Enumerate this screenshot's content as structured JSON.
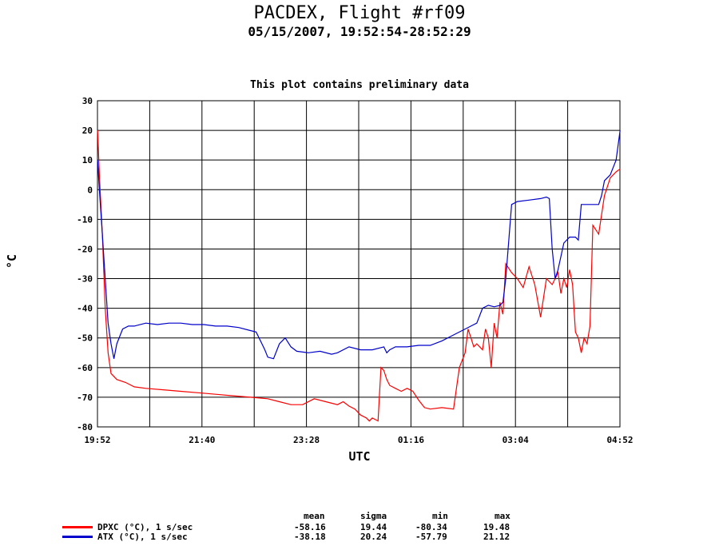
{
  "chart_data": {
    "type": "line",
    "title": "PACDEX, Flight #rf09",
    "subtitle": "05/15/2007, 19:52:54-28:52:29",
    "note": "This plot contains preliminary data",
    "xlabel": "UTC",
    "ylabel": "°C",
    "ylim": [
      -80,
      30
    ],
    "yticks": [
      30,
      20,
      10,
      0,
      -10,
      -20,
      -30,
      -40,
      -50,
      -60,
      -70,
      -80
    ],
    "xlim": [
      19.8667,
      28.8667
    ],
    "xticks": [
      {
        "value": 19.8667,
        "label": "19:52"
      },
      {
        "value": 21.6667,
        "label": "21:40"
      },
      {
        "value": 23.4667,
        "label": "23:28"
      },
      {
        "value": 25.2667,
        "label": "01:16"
      },
      {
        "value": 27.0667,
        "label": "03:04"
      },
      {
        "value": 28.8667,
        "label": "04:52"
      }
    ],
    "grid": true,
    "series": [
      {
        "name": "DPXC (°C), 1 s/sec",
        "color": "#ff0000",
        "x": [
          19.87,
          19.9,
          19.95,
          20.0,
          20.05,
          20.1,
          20.2,
          20.35,
          20.5,
          20.7,
          21.0,
          21.3,
          21.6,
          21.9,
          22.2,
          22.5,
          22.8,
          23.0,
          23.2,
          23.4,
          23.6,
          23.8,
          24.0,
          24.1,
          24.2,
          24.3,
          24.4,
          24.5,
          24.55,
          24.6,
          24.7,
          24.75,
          24.8,
          24.85,
          24.9,
          25.0,
          25.1,
          25.2,
          25.3,
          25.4,
          25.5,
          25.6,
          25.8,
          26.0,
          26.1,
          26.2,
          26.25,
          26.3,
          26.35,
          26.4,
          26.5,
          26.55,
          26.6,
          26.65,
          26.7,
          26.75,
          26.8,
          26.85,
          26.9,
          27.0,
          27.1,
          27.2,
          27.3,
          27.4,
          27.5,
          27.6,
          27.7,
          27.8,
          27.85,
          27.9,
          27.95,
          28.0,
          28.05,
          28.1,
          28.15,
          28.2,
          28.25,
          28.3,
          28.35,
          28.4,
          28.5,
          28.6,
          28.7,
          28.8,
          28.87
        ],
        "y": [
          20,
          5,
          -15,
          -40,
          -55,
          -62,
          -64,
          -65,
          -66.5,
          -67,
          -67.5,
          -68,
          -68.5,
          -69,
          -69.5,
          -70,
          -70.5,
          -71.5,
          -72.5,
          -72.5,
          -70.5,
          -71.5,
          -72.5,
          -71.5,
          -73,
          -74,
          -76,
          -77,
          -78,
          -77,
          -78,
          -60,
          -61,
          -64,
          -66,
          -67,
          -68,
          -67,
          -68,
          -71,
          -73.5,
          -74,
          -73.5,
          -74,
          -60,
          -55,
          -47,
          -50,
          -53,
          -52,
          -54,
          -47,
          -50,
          -60,
          -45,
          -50,
          -38,
          -42,
          -25,
          -28,
          -30,
          -33,
          -26,
          -32,
          -43,
          -30,
          -32,
          -28,
          -35,
          -30,
          -33,
          -27,
          -32,
          -48,
          -50,
          -55,
          -50,
          -52,
          -46,
          -12,
          -15,
          -2,
          4,
          6,
          7
        ]
      },
      {
        "name": "ATX (°C), 1 s/sec",
        "color": "#0000cc",
        "x": [
          19.87,
          19.9,
          19.95,
          20.0,
          20.05,
          20.1,
          20.15,
          20.2,
          20.3,
          20.4,
          20.5,
          20.7,
          20.9,
          21.1,
          21.3,
          21.5,
          21.7,
          21.9,
          22.1,
          22.3,
          22.5,
          22.6,
          22.7,
          22.75,
          22.8,
          22.9,
          23.0,
          23.1,
          23.2,
          23.3,
          23.5,
          23.7,
          23.9,
          24.0,
          24.2,
          24.4,
          24.6,
          24.8,
          24.85,
          24.9,
          25.0,
          25.2,
          25.4,
          25.6,
          25.8,
          26.0,
          26.2,
          26.3,
          26.4,
          26.5,
          26.6,
          26.7,
          26.8,
          26.85,
          26.9,
          27.0,
          27.1,
          27.3,
          27.5,
          27.6,
          27.65,
          27.7,
          27.75,
          27.8,
          27.9,
          28.0,
          28.1,
          28.15,
          28.2,
          28.3,
          28.4,
          28.5,
          28.55,
          28.6,
          28.7,
          28.8,
          28.87
        ],
        "y": [
          10,
          0,
          -15,
          -30,
          -45,
          -52,
          -57,
          -52,
          -47,
          -46,
          -46,
          -45,
          -45.5,
          -45,
          -45,
          -45.5,
          -45.5,
          -46,
          -46,
          -46.5,
          -47.5,
          -48,
          -52,
          -54,
          -56.5,
          -57,
          -52,
          -50,
          -53,
          -54.5,
          -55,
          -54.5,
          -55.5,
          -55,
          -53,
          -54,
          -54,
          -53,
          -55,
          -54,
          -53,
          -53,
          -52.5,
          -52.5,
          -51,
          -49,
          -47,
          -46,
          -45,
          -40,
          -39,
          -39.5,
          -39,
          -38,
          -30,
          -5,
          -4,
          -3.5,
          -3,
          -2.5,
          -3,
          -20,
          -30,
          -27,
          -18,
          -16,
          -16,
          -17,
          -5,
          -5,
          -5,
          -5,
          -2,
          3,
          5,
          10,
          20
        ]
      }
    ],
    "stats": {
      "headers": [
        "mean",
        "sigma",
        "min",
        "max"
      ],
      "rows": [
        {
          "label": "DPXC (°C), 1 s/sec",
          "mean": "-58.16",
          "sigma": "19.44",
          "min": "-80.34",
          "max": "19.48"
        },
        {
          "label": "ATX (°C), 1 s/sec",
          "mean": "-38.18",
          "sigma": "20.24",
          "min": "-57.79",
          "max": "21.12"
        }
      ]
    }
  }
}
